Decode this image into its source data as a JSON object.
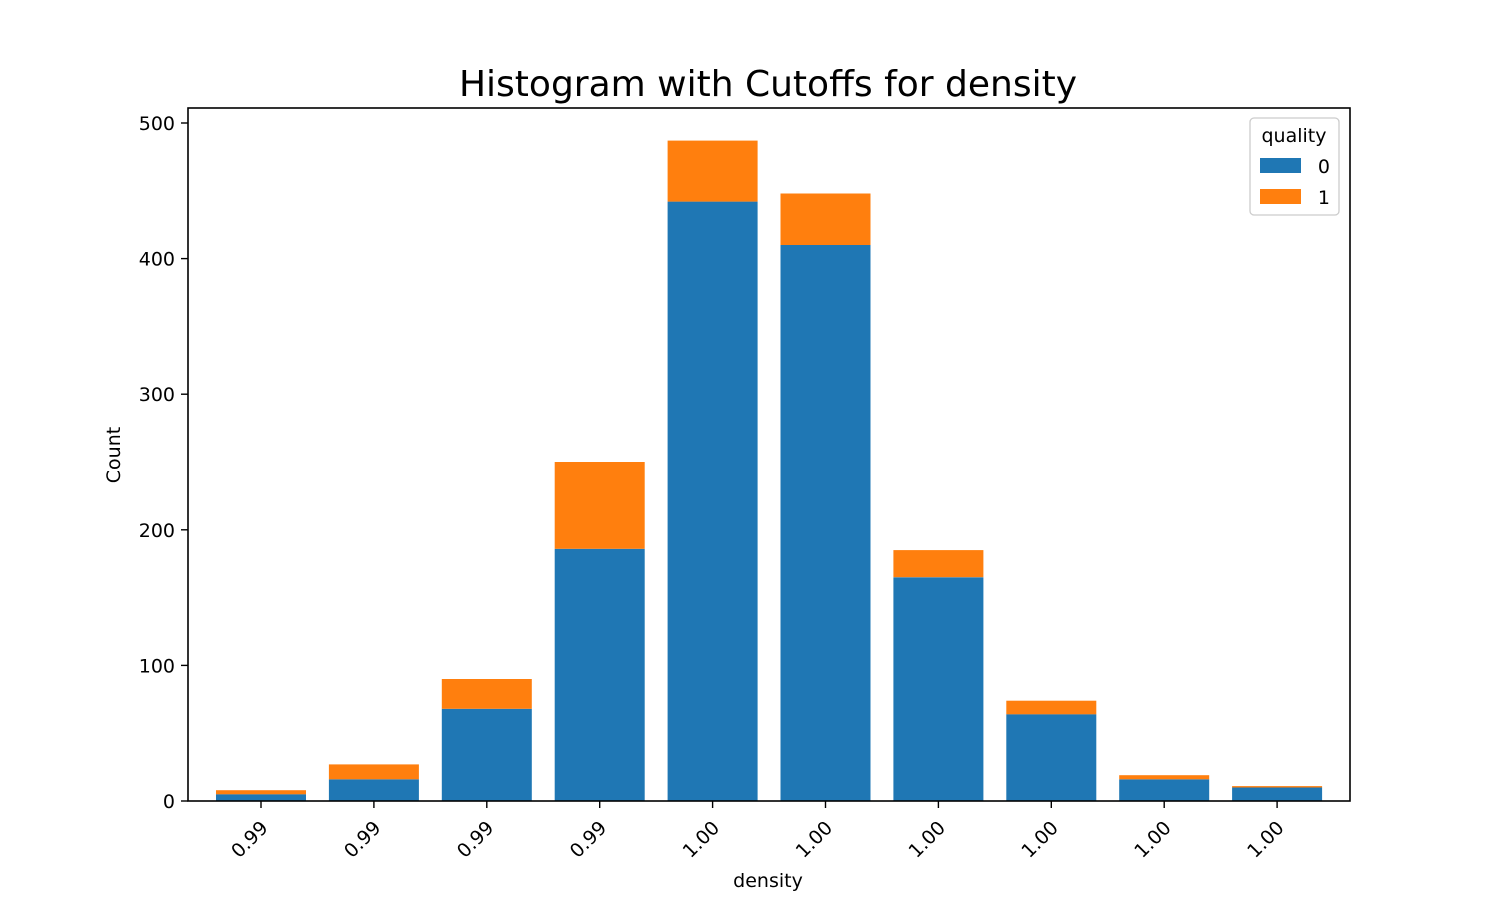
{
  "chart_data": {
    "type": "bar",
    "stacked": true,
    "title": "Histogram with Cutoffs for density",
    "xlabel": "density",
    "ylabel": "Count",
    "categories": [
      "0.99",
      "0.99",
      "0.99",
      "0.99",
      "1.00",
      "1.00",
      "1.00",
      "1.00",
      "1.00",
      "1.00"
    ],
    "series": [
      {
        "name": "0",
        "color": "#1f77b4",
        "values": [
          5,
          16,
          68,
          186,
          442,
          410,
          165,
          64,
          16,
          10
        ]
      },
      {
        "name": "1",
        "color": "#ff7f0e",
        "values": [
          3,
          11,
          22,
          64,
          45,
          38,
          20,
          10,
          3,
          1
        ]
      }
    ],
    "ylim": [
      0,
      512
    ],
    "yticks": [
      0,
      100,
      200,
      300,
      400,
      500
    ],
    "legend": {
      "title": "quality",
      "position": "top-right"
    },
    "grid": false
  }
}
